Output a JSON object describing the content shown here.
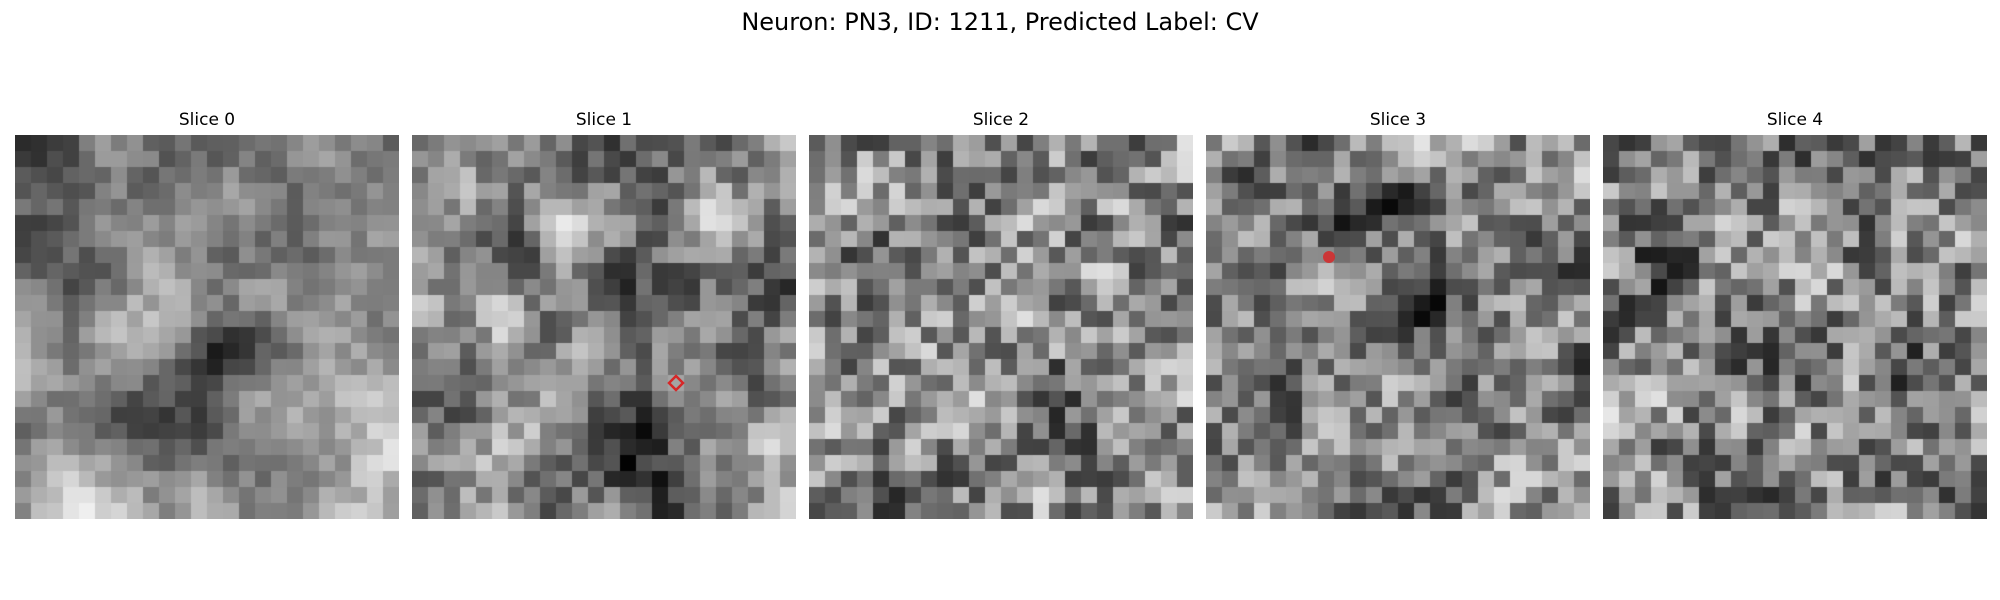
{
  "figure": {
    "title": "Neuron: PN3, ID: 1211, Predicted Label: CV"
  },
  "slices": [
    {
      "title": "Slice 0",
      "marker": null
    },
    {
      "title": "Slice 1",
      "marker": {
        "col": 16.5,
        "row": 15.5,
        "style": "diamond-outline",
        "color": "#d62728"
      }
    },
    {
      "title": "Slice 2",
      "marker": null
    },
    {
      "title": "Slice 3",
      "marker": {
        "col": 7.7,
        "row": 7.6,
        "style": "filled-circle",
        "color": "#d62728"
      }
    },
    {
      "title": "Slice 4",
      "marker": null
    }
  ],
  "image": {
    "grid_size": 24,
    "colormap": "gray"
  }
}
